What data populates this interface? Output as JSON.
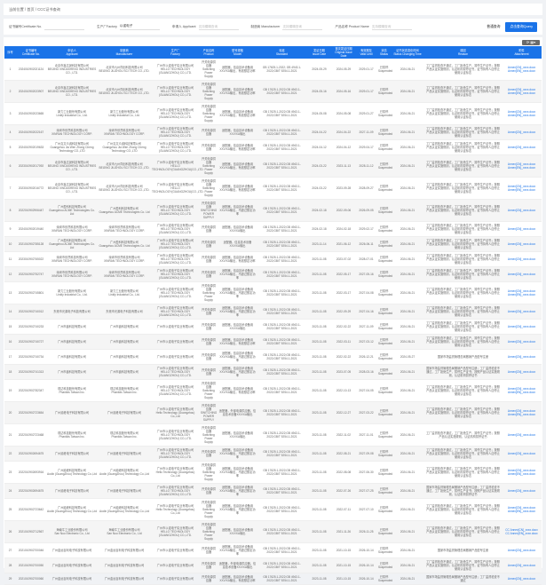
{
  "breadcrumb": {
    "current_label": "当前位置",
    "home": "首页",
    "page": "CCC证书查询",
    "sep": " / "
  },
  "filters": [
    {
      "label": "证书编号Certificate No.",
      "value": "",
      "placeholder": ""
    },
    {
      "label": "生产厂Factory",
      "value": "以诺电子",
      "placeholder": ""
    },
    {
      "label": "申请人 Applicant",
      "value": "",
      "placeholder": "支持模糊查询"
    },
    {
      "label": "制造商 Manufacturer",
      "value": "",
      "placeholder": "支持模糊查询"
    },
    {
      "label": "产品名称 Product Name",
      "value": "",
      "placeholder": "支持模糊查询"
    }
  ],
  "buttons": {
    "plain": "普通查询",
    "query": "点击查询Query"
  },
  "toolbar": {
    "icons": [
      "refresh-icon",
      "columns-icon"
    ],
    "text": "⟳ ▦▾"
  },
  "colors": {
    "header": "#1a73e8",
    "link": "#1a73e8"
  },
  "columns": [
    "序号",
    "证书编号\nCertificate No.",
    "申请人\nApplicant",
    "制造商\nManufacturer",
    "生产厂\nFactory",
    "产品名称\nProduct",
    "型号规格\nModel",
    "标准\nStandard",
    "发证日期\nIssue Date",
    "首次发证日期\nOriginal Issue Date",
    "有效期至\nValid Until",
    "状态\nStatus",
    "证书状态变化时间\nStatus Changing Time",
    "原因\nReason",
    "附件\nAttachment"
  ],
  "rows": [
    [
      "1",
      "2024010902021124",
      "北京市鑫达晟科技有限公司\nBEIJING XINDASHENG INDUSTRIES CO., LTD.",
      "北京市九州同创科技有限公司\nBEIJING JIUZHOU SCI TECH CO.,LTD.",
      "广州市以诺电子实业有限公司\nHELLO TECHNOLOGY (GUANGZHOU) CO.,LTD.",
      "开关电源供应器\nSwitching Power Supply",
      "适配器，信息技术设备用XXV/XA输出，有线额定功率",
      "GB 17625.1-2022; GB 4943.1-2022;GB/T 9254.1-2021",
      "2024-05-29",
      "2024-05-29",
      "2029-01-17",
      "已暂停\nSuspended",
      "2024-06-21",
      "工厂监督检查不通过，工厂拒绝生产、暂停生产证书；按照产品认证实施规则，认证机构暂停证书，证书持有人应停止使用认证标志",
      "Annex[CN]_xxxx.docx\nAnnex[EN]_xxxx.docx"
    ],
    [
      "2",
      "2024010902023907",
      "北京市鑫达晟科技有限公司\nBEIJING XINDASHENG INDUSTRIES CO., LTD.",
      "北京市九州同创科技有限公司\nBEIJING JIUZHOU SCI TECH CO.,LTD.",
      "广州市以诺电子实业有限公司\nHELLO TECHNOLOGY (GUANGZHOU) CO.,LTD.",
      "开关电源供应器\nSwitching Power Supply",
      "适配器，信息技术设备用XXV/XA输出，有线额定功率",
      "GB 17625.1-2022;GB 4943.1-2022;GB/T 9254.1-2021",
      "2024-05-16",
      "2024-05-16",
      "2029-01-17",
      "已暂停\nSuspended",
      "2024-06-21",
      "工厂监督检查不通过，工厂拒绝生产、暂停生产证书；按照产品认证实施规则，认证机构暂停证书，证书持有人应停止使用认证标志",
      "Annex[CN]_xxxx.docx\nAnnex[EN]_xxxx.docx"
    ],
    [
      "3",
      "2024010902023665",
      "新力工业股份有限公司\nLinkfy Industrial Co., Ltd.",
      "新力工业股份有限公司\nLinkfy Industrial Co., Ltd.",
      "广州市以诺电子实业有限公司\nHELLO TECHNOLOGY (GUANGZHOU) CO.,LTD.",
      "开关电源供应器\nSwitching Power Supply",
      "适配器，信息技术设备用XXV/XA输出，有线额定功率",
      "GB 17625.1-2022;GB 4943.1-2022;GB/T 9254.1-2021",
      "2024-05-08",
      "2024-05-08",
      "2029-01-27",
      "已暂停\nSuspended",
      "2024-06-21",
      "工厂监督检查不通过，工厂拒绝生产、暂停生产证书；按照产品认证实施规则，认证机构暂停证书，证书持有人应停止使用认证标志",
      "Annex[CN]_xxxx.docx\nAnnex[EN]_xxxx.docx"
    ],
    [
      "4",
      "2024010902022167",
      "深圳市欣然科技有限公司\nXINRAN TECHNOLOGY CORP.",
      "深圳市欣然科技有限公司\nXINRAN TECHNOLOGY CORP.",
      "广州市以诺电子实业有限公司\nHELLO TECHNOLOGY (GUANGZHOU) CO.,LTD.",
      "开关电源供应器",
      "适配器，信息技术设备用XXV/XA输出",
      "GB 17625.1-2022;GB 4943.1-2022;GB/T 9254.1-2021",
      "2024-04-22",
      "2024-04-22",
      "2027-11-09",
      "已暂停\nSuspended",
      "2024-06-21",
      "工厂监督检查不通过，工厂拒绝生产、暂停生产证书；按照产品认证实施规则，认证机构暂停证书，证书持有人应停止使用认证标志",
      "Annex[CN]_xxxx.docx"
    ],
    [
      "5",
      "2024010902019633",
      "广州嘉文众诚科技有限公司\nGuangzhou Jia Wen Zhong Cheng Technology CO.,LTD",
      "广州嘉文众诚科技有限公司\nGuangzhou Jia Wen Zhong Cheng Technology CO.,LTD",
      "广州市以诺电子实业有限公司\nHELLO TECHNOLOGY (GUANGZHOU) CO.,LTD.",
      "开关电源供应器",
      "适配器，信息技术设备用XXV/XA输出，有线额定功率",
      "GB 17625.1-2022;GB 4943.1-2022;GB/T 9254.1-2021",
      "2024-04-12",
      "2024-04-12",
      "2029-04-17",
      "已暂停\nSuspended",
      "2024-06-21",
      "工厂监督检查不通过，工厂拒绝生产、暂停生产证书；按照产品认证实施规则，认证机构暂停证书，证书持有人应停止使用认证标志",
      "Annex[CN]_xxxx.docx"
    ],
    [
      "6",
      "2023010902017092",
      "北京市鑫达晟科技有限公司\nBEIJING XINDASHENG INDUSTRIES CO., LTD.",
      "北京市九州同创科技有限公司\nBEIJING JIUZHOU SCI TECH CO.,LTD.",
      "广州市以诺电子实业有限公司\nHELLO TECHNOLOGY(GUANGZHOU)CO.,LTD.",
      "开关电源供应器\nSwitching Power Supply",
      "适配器，信息技术设备用XXV/XA输出，有线额定功率",
      "GB 17625.1-2022;GB 4943.1-2022;GB/T 9254.1-2021",
      "2024-03-22",
      "2023-11-13",
      "2028-11-12",
      "已暂停\nSuspended",
      "2024-06-21",
      "工厂监督检查不通过，工厂拒绝生产、暂停生产证书；按照产品认证实施规则，认证机构暂停证书，证书持有人应停止使用认证标志",
      "Annex[CN]_xxxx.docx\nAnnex[EN]_xxxx.docx"
    ],
    [
      "7",
      "2023010902016772",
      "北京市鑫达晟科技有限公司\nBEIJING XINDASHENG INDUSTRIES CO., LTD.",
      "北京市九州同创科技有限公司\nBEIJING JIUZHOU SCI TECH CO.,LTD.",
      "广州市以诺电子实业有限公司\nHELLO TECHNOLOGY(GUANGZHOU)CO.,LTD.",
      "开关电源供应器\nSwitching Power Supply",
      "适配器，信息技术设备用XXV/XA输出，有线额定功率",
      "GB 17625.1-2022;GB 4943.1-2022;GB/T 9254.1-2021",
      "2024-03-22",
      "2023-09-28",
      "2028-09-27",
      "已暂停\nSuspended",
      "2024-06-21",
      "工厂监督检查不通过，工厂拒绝生产、暂停生产证书；按照产品认证实施规则，认证机构暂停证书，证书持有人应停止使用认证标志",
      "Annex[CN]_xxxx.docx\nAnnex[EN]_xxxx.docx"
    ],
    [
      "8",
      "2022010902906447",
      "广州盈科科技有限公司\nGuangzhou ACME Technologies Co. Ltd",
      "广州盈科科技有限公司\nGuangzhou ACME Technologies Co. Ltd",
      "广州市以诺电子实业有限公司\nHELLO TECHNOLOGY (GUANGZHOU) CO.,LTD.",
      "开关电源供应器\nSWITCHING POWER SUPPLY",
      "适配器，信息技术设备用XXV/XA输出，不超过额定功率",
      "GB 17625.1-2022;GB 4943.1-2022;GB/T 9254.1-2021",
      "2024-02-18",
      "2022-09-06",
      "2026-09-05",
      "已暂停\nSuspended",
      "2024-06-21",
      "工厂监督检查不通过，工厂拒绝生产、暂停生产证书；按照产品认证实施规则，认证机构暂停证书，证书持有人应停止使用认证标志",
      "Annex[CN]_xxxx.docx"
    ],
    [
      "9",
      "2024010902019440",
      "深圳市欣然科技有限公司\nXINRAN TECHNOLOGY CORP.",
      "深圳市欣然科技有限公司\nXINRAN TECHNOLOGY CORP.",
      "广州市以诺电子实业有限公司\nHELLO TECHNOLOGY (GUANGZHOU) CO.,LTD.",
      "开关电源供应器",
      "适配器，信息技术设备用XXV/XA输出",
      "GB 17625.1-2022;GB 4943.1-2022;GB/T 9254.1-2021",
      "2024-02-18",
      "2024-02-18",
      "2029-02-17",
      "已暂停\nSuspended",
      "2024-06-21",
      "工厂监督检查不通过，工厂拒绝生产、暂停生产证书；按照产品认证实施规则，认证机构暂停证书，证书持有人应停止使用认证标志",
      "Annex[CN]_xxxx.docx"
    ],
    [
      "10",
      "2021010902785128",
      "广州盈科科技有限公司\nGuangzhou ACME Technologies Co. Ltd",
      "广州盈科科技有限公司\nGuangzhou ACME Technologies Co. Ltd",
      "广州市以诺电子实业有限公司\nHELLO TECHNOLOGY (GUANGZHOU) CO.,LTD.",
      "开关电源供应器",
      "适配器，信息技术设备 XXV/XA输出",
      "GB 17625.1-2022;GB 4943.1-2022;GB/T 9254.1-2021",
      "2023-11-14",
      "2021-06-12",
      "2026-06-11",
      "已暂停\nSuspended",
      "2024-06-21",
      "工厂监督检查不通过，工厂拒绝生产、暂停生产证书；按照产品认证实施规则，认证机构暂停证书，证书持有人应停止使用认证标志",
      "Annex[CN]_xxxx.docx"
    ],
    [
      "11",
      "2023010902765022",
      "深圳市欣然科技有限公司\nXINRAN TECHNOLOGY CORP.",
      "深圳市欣然科技有限公司\nXINRAN TECHNOLOGY CORP.",
      "广州市以诺电子实业有限公司\nHELLO TECHNOLOGY (GUANGZHOU) CO.,LTD.",
      "开关电源供应器",
      "适配器，信息技术设备用XXV/XA输出，有线额定功率",
      "GB 17625.1-2022;GB 4943.1-2022;GB/T 9254.1-2021",
      "2023-11-08",
      "2023-07-02",
      "2028-07-01",
      "已暂停\nSuspended",
      "2024-06-21",
      "工厂监督检查不通过，工厂拒绝生产、暂停生产证书；按照产品认证实施规则，认证机构暂停证书，证书持有人应停止使用认证标志",
      "Annex[CN]_xxxx.docx"
    ],
    [
      "12",
      "2022010902752747",
      "深圳市欣然科技有限公司\nXINRAN TECHNOLOGY CORP.",
      "深圳市欣然科技有限公司\nXINRAN TECHNOLOGY CORP.",
      "广州市以诺电子实业有限公司\nHELLO TECHNOLOGY (GUANGZHOU) CO.,LTD.",
      "开关电源供应器",
      "适配器，信息技术设备用XXV/XA输出，不超过额定功率",
      "GB 17625.1-2022;GB 4943.1-2022;GB/T 9254.1-2021",
      "2023-11-08",
      "2022-05-17",
      "2027-05-16",
      "已暂停\nSuspended",
      "2024-06-21",
      "工厂监督检查不通过，工厂拒绝生产、暂停生产证书；按照产品认证实施规则，认证机构暂停证书，证书持有人应停止使用认证标志",
      "Annex[CN]_xxxx.docx"
    ],
    [
      "13",
      "2022010902745801",
      "新力工业股份有限公司\nLinkfy Industrial Co., Ltd.",
      "新力工业股份有限公司\nLinkfy Industrial Co., Ltd.",
      "广州市以诺电子实业有限公司\nHELLO TECHNOLOGY (GUANGZHOU) CO.,LTD.",
      "开关电源供应器\nSwitching Power Supply",
      "适配器，信息技术设备用XXV/XA输出，不超过额定功率",
      "GB 17625.1-2022;GB 4943.1-2022;GB/T 9254.1-2021",
      "2023-11-08",
      "2022-03-17",
      "2027-04-08",
      "已暂停\nSuspended",
      "2024-06-21",
      "工厂监督检查不通过，工厂拒绝生产、暂停生产证书；按照产品认证实施规则，认证机构暂停证书，证书持有人应停止使用认证标志",
      "Annex[CN]_xxxx.docx\nAnnex[EN]_xxxx.docx"
    ],
    [
      "14",
      "2022010902740012",
      "东莞市光源电子科技有限公司",
      "东莞市光源电子科技有限公司",
      "广州市以诺电子实业有限公司\nHELLO TECHNOLOGY (GUANGZHOU) CO.,LTD.",
      "开关电源供应器",
      "适配器，信息技术设备用XXV/XA输出，不超过额定功率",
      "GB 17625.1-2022;GB 4943.1-2022;GB/T 9254.1-2021",
      "2023-11-08",
      "2022-09-29",
      "2027-04-16",
      "已暂停\nSuspended",
      "2024-06-21",
      "工厂监督检查不通过，工厂拒绝生产、暂停生产证书；按照产品认证实施规则，认证机构暂停证书，证书持有人应停止使用认证标志",
      "Annex[CN]_xxxx.docx"
    ],
    [
      "15",
      "2022010902740233",
      "广州市鑫科技有限公司",
      "广州市鑫科技有限公司",
      "广州市以诺电子实业有限公司",
      "开关电源供应器",
      "适配器，信息技术设备用XXV/XA输出",
      "GB 17625.1-2022;GB 4943.1-2022;GB/T 9254.1-2021",
      "2023-11-08",
      "2022-02-22",
      "2027-11-09",
      "已暂停\nSuspended",
      "2024-06-21",
      "工厂监督检查不通过，工厂拒绝生产、暂停生产证书；按照产品认证实施规则，认证机构暂停证书，证书持有人应停止使用认证标志",
      "Annex[CN]_xxxx.docx"
    ],
    [
      "16",
      "2022010902740727",
      "广州市鑫科技有限公司",
      "广州市鑫科技有限公司",
      "广州市以诺电子实业有限公司",
      "开关电源供应器",
      "适配器，信息技术设备用XXV/XA输出，有线额定功率",
      "GB 17625.1-2022;GB 4943.1-2022;GB/T 9254.1-2021",
      "2023-11-08",
      "2022-03-11",
      "2027-03-12",
      "已暂停\nSuspended",
      "2024-06-21",
      "工厂监督检查不通过，工厂拒绝生产、暂停生产证书；按照产品认证实施规则，认证机构暂停证书，证书持有人应停止使用认证标志",
      "Annex[CN]_xxxx.docx"
    ],
    [
      "17",
      "2022010902740734",
      "广州市鑫科技有限公司",
      "广州市鑫科技有限公司",
      "广州市以诺电子实业有限公司",
      "开关电源供应器",
      "适配器，信息技术设备用XXV/XA输出，不超过额定功率",
      "GB 17625.1-2022;GB 4943.1-2022;GB/T 9254.1-2021",
      "2023-11-08",
      "2022-02-22",
      "2026-12-21",
      "已暂停\nSuspended",
      "2024-05-27",
      "国家市场监督管理总局撤销产品型号注册",
      "Annex[CN]_xxxx.docx"
    ],
    [
      "18",
      "2022010902741313",
      "广州市鑫科技有限公司",
      "广州市鑫科技有限公司",
      "广州市以诺电子实业有限公司\nHELLO TECHNOLOGY (GUANGZHOU) CO.,LTD.",
      "开关电源供应器",
      "适配器，信息技术设备用XXV/XA输出，不超过额定功率",
      "GB 17625.1-2022;GB 4943.1-2022;GB/T 9254.1-2021",
      "2023-11-08",
      "2023-07-05",
      "2028-03-16",
      "已暂停\nSuspended",
      "2024-06-21",
      "国家市场监督管理总局撤销产品型号注册；工厂监督检查不通过，工厂拒绝生产、暂停生产证书；按照产品认证实施规则，认证机构暂停证书",
      "Annex[CN]_xxxx.docx"
    ],
    [
      "19",
      "2022010902782347",
      "现达科技股份有限公司\nPhaniids Taiwan Inc.",
      "现达科技股份有限公司\nPhaniids Taiwan Inc.",
      "广州市以诺电子实业有限公司\nHELLO TECHNOLOGY (GUANGZHOU) CO.,LTD.",
      "开关电源供应器\nSwitching Power Supply",
      "适配器，信息技术设备用XXV/XA输出，有线额定功率",
      "GB 17625.1-2022;GB 4943.1-2022;GB/T 9254.1-2021",
      "2023-11-08",
      "2022-10-13",
      "2027-04-05",
      "已暂停\nSuspended",
      "2024-06-21",
      "工厂监督检查不通过，工厂拒绝生产、暂停生产证书；按照产品认证实施规则，认证机构暂停证书，证书持有人应停止使用认证标志",
      "Annex[CN]_xxxx.docx\nAnnex[EN]_xxxx.docx"
    ],
    [
      "20",
      "2022010902723654",
      "广州延峰电子科技有限公司",
      "广州延峰电子科技有限公司",
      "广州市以诺电子实业有限公司\nHello Technology (Guangzhou) Co.,Ltd",
      "开关电源供应器\nSWITCHING POWER SUPPLY",
      "适配器，外部电源供应器，信息技术设备XXV/XA输出",
      "GB 17625.1-2022;GB 4943.1-2022;GB/T 9254.1-2021",
      "2023-11-08",
      "2022-12-27",
      "2027-03-22",
      "已暂停\nSuspended",
      "2024-06-21",
      "工厂监督检查不通过，工厂拒绝生产、暂停生产证书；按照产品认证实施规则，认证机构暂停证书，证书持有人应停止使用认证标志",
      "Annex[CN]_xxxx.docx\nAnnex[EN]_xxxx.docx"
    ],
    [
      "21",
      "2022010902723468",
      "现达科技股份有限公司\nPhaniids Taiwan Inc.",
      "现达科技股份有限公司\nPhaniids Taiwan Inc.",
      "广州市以诺电子实业有限公司\nHELLO TECHNOLOGY (GUANGZHOU) CO.,LTD.",
      "开关电源供应器\nSwitching Power Supply",
      "适配器，信息技术设备用XXV/XA输出",
      "GB 17625.1-2022;GB 4943.1-2022;GB/T 9254.1-2021",
      "2023-11-08",
      "2022-11-02",
      "2027-11-01",
      "已暂停\nSuspended",
      "2024-06-21",
      "工厂监督检查不通过，工厂拒绝生产、暂停生产证书；按照产品认证实施规则，认证机构暂停证书",
      "Annex[CN]_xxxx.docx"
    ],
    [
      "22",
      "2022010902694675",
      "广州延峰电子科技有限公司",
      "广州延峰电子科技有限公司",
      "广州市以诺电子实业有限公司\nHELLO TECHNOLOGY (GUANGZHOU) CO.,LTD.",
      "开关电源供应器",
      "适配器，信息技术设备用XXV/XA输出，不超过额定功率",
      "GB 17625.1-2022;GB 4943.1-2022;GB/T 9254.1-2021",
      "2023-11-08",
      "2022-08-21",
      "2027-09-08",
      "已暂停\nSuspended",
      "2024-06-21",
      "工厂监督检查不通过，工厂拒绝生产、暂停生产证书；按照产品认证实施规则，认证机构暂停证书，证书持有人应停止使用认证标志",
      "Annex[CN]_xxxx.docx"
    ],
    [
      "23",
      "2022010902693916",
      "广州延峰科技有限公司\nAodix (GuangZhou) Technology Co.,Ltd",
      "广州延峰科技有限公司\nAodix (GuangZhou) Technology Co.,Ltd",
      "广州市以诺电子实业有限公司\nHello Technology (Guangzhou) Co.,Ltd",
      "开关电源供应器\nSwitching Power Supply",
      "适配器，信息技术设备用XXV/XA输出，不超过额定功率",
      "GB 17625.1-2022;GB 4943.1-2022;GB/T 9254.1-2021",
      "2023-11-08",
      "2022-08-08",
      "2027-06-30",
      "已暂停\nSuspended",
      "2024-06-21",
      "工厂监督检查不通过，工厂拒绝生产、暂停生产证书；按照产品认证实施规则，认证机构暂停证书，证书持有人应停止使用认证标志",
      "Annex[CN]_xxxx.docx\nAnnex[EN]_xxxx.docx"
    ],
    [
      "24",
      "2022010902694675",
      "广州延峰电子科技有限公司",
      "广州延峰电子科技有限公司",
      "广州市以诺电子实业有限公司\nHELLO TECHNOLOGY (GUANGZHOU) CO.,LTD.",
      "开关电源供应器",
      "适配器，信息技术设备用XXV/XA输出，不超过额定功率",
      "GB 17625.1-2022;GB 4943.1-2022;GB/T 9254.1-2021",
      "2023-11-08",
      "2022-07-26",
      "2027-07-25",
      "已暂停\nSuspended",
      "2024-06-21",
      "国家市场监督管理总局撤销产品型号注册；工厂监督检查不通过，工厂拒绝生产、暂停生产证书；按照产品认证实施规则，认证机构暂停证书",
      "Annex[CN]_xxxx.docx"
    ],
    [
      "25",
      "2022010902723642",
      "广州延峰科技有限公司\nAodix (GuangZhou) Technology Co.,Ltd",
      "广州延峰科技有限公司\nAodix (GuangZhou) Technology Co.,Ltd",
      "广州市以诺电子实业有限公司\nHello Technology (Guangzhou) Co.,Ltd",
      "开关电源供应器\nSwitching Power Supply",
      "适配器，信息技术设备用XXV/XA输出，不超过额定功率",
      "GB 17625.1-2022;GB 4943.1-2022;GB/T 9254.1-2021",
      "2023-11-08",
      "2022-07-11",
      "2027-07-10",
      "已暂停\nSuspended",
      "2024-06-21",
      "工厂监督检查不通过，工厂拒绝生产、暂停生产证书；按照产品认证实施规则，认证机构暂停证书，证书持有人应停止使用认证标志",
      "Annex[CN]_xxxx.docx\nAnnex[EN]_xxxx.docx"
    ],
    [
      "26",
      "2021010902712567",
      "海南牛工业股份有限公司\nSan Nuo Electronic Co., Ltd",
      "海南牛工业股份有限公司\nSan Nuo Electronic Co., Ltd",
      "广州市以诺电子实业有限公司\nHELLO TECHNOLOGY (GUANGZHOU) CO.,LTD.",
      "开关电源供应器\nSwitching Power Supply",
      "适配器，信息技术设备用XXV/XA输出",
      "GB 17625.1-2022;GB 4943.1-2022;GB/T 9254.1-2021",
      "2023-11-08",
      "2021-11-26",
      "2026-11-25",
      "已暂停\nSuspended",
      "2024-06-21",
      "工厂监督检查不通过，工厂拒绝生产、暂停生产证书；按照产品认证实施规则，认证机构暂停证书，证书持有人应停止使用认证标志",
      "CC Annex[CN]_xxxx.docx\nCC Annex[EN]_xxxx.docx"
    ],
    [
      "27",
      "2021010902700046",
      "广州金远百利电子科技有限公司",
      "广州金远百利电子科技有限公司",
      "广州市以诺电子实业有限公司",
      "开关电源供应器",
      "适配器，信息技术设备用XXV/XA输出，不超过额定功率",
      "GB 17625.1-2022;GB 4943.1-2022;GB/T 9254.1-2021",
      "2023-11-08",
      "2021-10-15",
      "2026-10-14",
      "已暂停\nSuspended",
      "2024-06-21",
      "国家市场监督管理总局撤销产品型号注册",
      "Annex[CN]_xxxx.docx"
    ],
    [
      "28",
      "2021010902700050",
      "广州金远百利电子科技有限公司",
      "广州金远百利电子科技有限公司",
      "广州市以诺电子实业有限公司",
      "开关电源供应器",
      "适配器，外部电源供应器，信息技术设备XXV/XA输出",
      "GB 17625.1-2022;GB 4943.1-2022;GB/T 9254.1-2021",
      "2023-11-08",
      "2021-10-15",
      "2026-10-14",
      "已暂停\nSuspended",
      "2024-06-21",
      "工厂监督检查不通过，工厂拒绝生产、暂停生产证书；按照产品认证实施规则，认证机构暂停证书，证书持有人应停止使用认证标志",
      "Annex[CN]_xxxx.docx"
    ],
    [
      "29",
      "2021010902700060",
      "广州金远百利电子科技有限公司",
      "广州金远百利电子科技有限公司",
      "广州市以诺电子实业有限公司",
      "开关电源供应器",
      "适配器，信息技术设备用XXV/XA输出，有线额定功率",
      "GB 17625.1-2022;GB 4943.1-2022;GB/T 9254.1-2021",
      "2023-11-08",
      "2021-10-15",
      "2026-10-14",
      "已暂停\nSuspended",
      "2024-06-21",
      "国家市场监督管理总局撤销产品型号注册；工厂监督检查不通过",
      "Annex[CN]_xxxx.docx"
    ]
  ]
}
